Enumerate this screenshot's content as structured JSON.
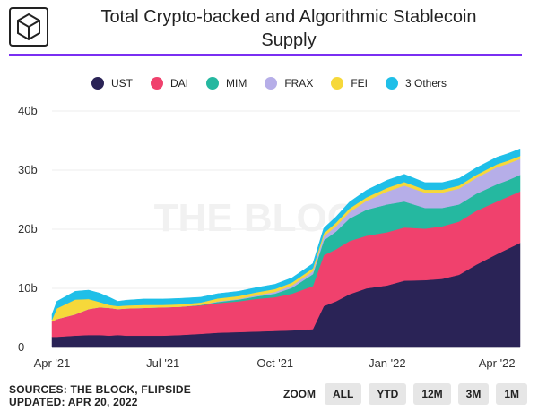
{
  "title_lines": [
    "Total Crypto-backed and Algorithmic Stablecoin",
    "Supply"
  ],
  "watermark": "THE BLOCK",
  "sources_lines": [
    "SOURCES: THE BLOCK, FLIPSIDE",
    "UPDATED: APR 20, 2022"
  ],
  "zoom": {
    "label": "ZOOM",
    "buttons": [
      "ALL",
      "YTD",
      "12M",
      "3M",
      "1M"
    ]
  },
  "colors": {
    "accent": "#7a2ff2"
  },
  "chart_data": {
    "type": "area",
    "stacked": true,
    "ylim": [
      0,
      40
    ],
    "yticks": [
      {
        "value": 0,
        "label": "0"
      },
      {
        "value": 10,
        "label": "10b"
      },
      {
        "value": 20,
        "label": "20b"
      },
      {
        "value": 30,
        "label": "30b"
      },
      {
        "value": 40,
        "label": "40b"
      }
    ],
    "xticks": [
      "Apr '21",
      "Jul '21",
      "Oct '21",
      "Jan '22",
      "Apr '22"
    ],
    "legend_position": "top-center",
    "grid": true,
    "x": [
      "2021-04-01",
      "2021-04-05",
      "2021-04-20",
      "2021-05-01",
      "2021-05-10",
      "2021-05-18",
      "2021-05-25",
      "2021-06-01",
      "2021-06-15",
      "2021-07-01",
      "2021-07-15",
      "2021-08-01",
      "2021-08-15",
      "2021-09-01",
      "2021-09-15",
      "2021-10-01",
      "2021-10-15",
      "2021-11-01",
      "2021-11-10",
      "2021-11-20",
      "2021-12-01",
      "2021-12-15",
      "2022-01-01",
      "2022-01-15",
      "2022-02-01",
      "2022-02-15",
      "2022-03-01",
      "2022-03-15",
      "2022-04-01",
      "2022-04-10",
      "2022-04-20"
    ],
    "series": [
      {
        "name": "UST",
        "color": "#2a2356",
        "values": [
          1.8,
          1.8,
          2.0,
          2.1,
          2.1,
          2.0,
          2.1,
          2.0,
          2.0,
          2.0,
          2.1,
          2.3,
          2.5,
          2.6,
          2.7,
          2.8,
          2.9,
          3.1,
          7.0,
          7.8,
          9.0,
          10.0,
          10.5,
          11.3,
          11.4,
          11.6,
          12.3,
          14.0,
          15.8,
          16.7,
          17.7
        ]
      },
      {
        "name": "DAI",
        "color": "#f0416d",
        "values": [
          2.6,
          3.0,
          3.6,
          4.4,
          4.7,
          4.7,
          4.4,
          4.6,
          4.7,
          4.8,
          4.8,
          4.8,
          5.0,
          5.2,
          5.5,
          5.7,
          6.2,
          7.3,
          8.6,
          8.8,
          9.0,
          8.9,
          9.0,
          9.0,
          8.7,
          8.9,
          9.0,
          9.1,
          8.9,
          8.8,
          8.7
        ]
      },
      {
        "name": "MIM",
        "color": "#25b8a0",
        "values": [
          0,
          0,
          0,
          0,
          0,
          0,
          0,
          0,
          0,
          0,
          0,
          0.1,
          0.2,
          0.3,
          0.4,
          0.6,
          1.0,
          2.0,
          2.5,
          3.0,
          3.8,
          4.4,
          4.7,
          4.4,
          3.5,
          3.1,
          2.9,
          2.9,
          2.9,
          2.8,
          2.8
        ]
      },
      {
        "name": "FRAX",
        "color": "#b6aee8",
        "values": [
          0,
          0,
          0,
          0,
          0,
          0,
          0,
          0,
          0,
          0,
          0,
          0,
          0.1,
          0.1,
          0.2,
          0.3,
          0.4,
          0.5,
          0.7,
          0.9,
          1.1,
          1.5,
          2.2,
          2.7,
          2.6,
          2.6,
          2.7,
          2.7,
          2.9,
          2.8,
          2.7
        ]
      },
      {
        "name": "FEI",
        "color": "#f6d83a",
        "values": [
          0.3,
          1.8,
          2.5,
          1.7,
          0.9,
          0.5,
          0.5,
          0.5,
          0.5,
          0.4,
          0.4,
          0.4,
          0.5,
          0.5,
          0.5,
          0.5,
          0.5,
          0.5,
          0.5,
          0.6,
          0.6,
          0.6,
          0.6,
          0.6,
          0.5,
          0.5,
          0.5,
          0.5,
          0.5,
          0.5,
          0.5
        ]
      },
      {
        "name": "3 Others",
        "color": "#1fbfe8",
        "values": [
          0.9,
          1.2,
          1.4,
          1.5,
          1.5,
          1.3,
          0.8,
          0.9,
          1.0,
          1.0,
          1.0,
          0.9,
          0.8,
          0.8,
          0.8,
          0.8,
          0.8,
          0.8,
          0.9,
          1.0,
          1.1,
          1.2,
          1.3,
          1.3,
          1.2,
          1.2,
          1.2,
          1.2,
          1.2,
          1.2,
          1.2
        ]
      }
    ]
  }
}
